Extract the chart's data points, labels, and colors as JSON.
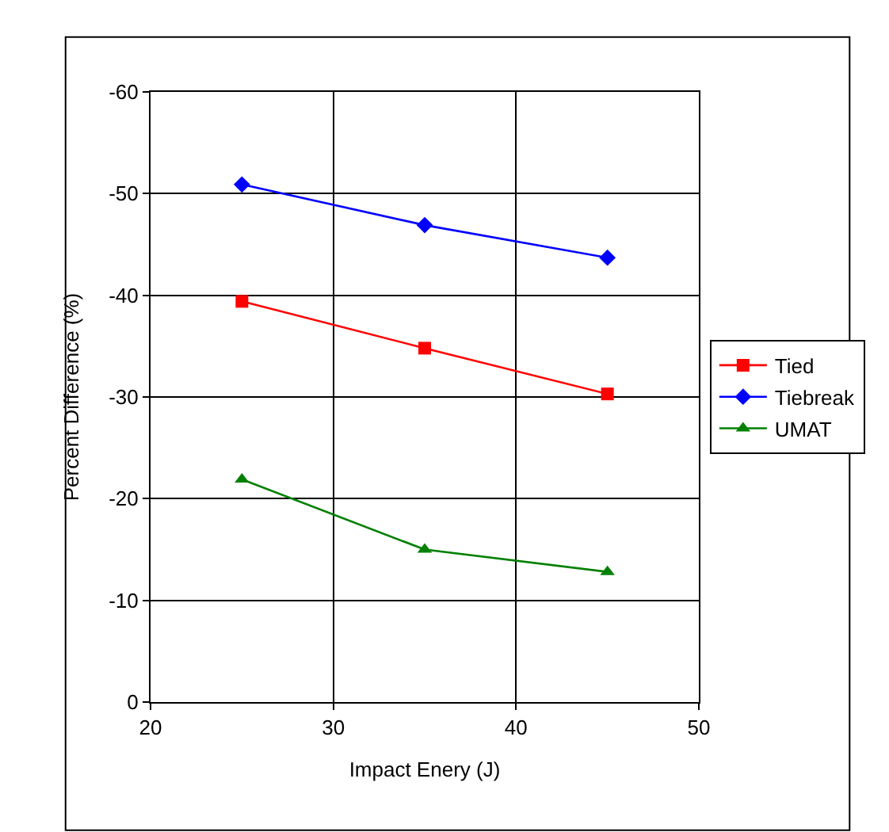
{
  "chart_data": {
    "type": "line",
    "xlabel": "Impact Enery (J)",
    "ylabel": "Percent Difference (%)",
    "x": [
      25,
      35,
      45
    ],
    "series": [
      {
        "name": "Tied",
        "color": "#ff0000",
        "marker": "square",
        "values": [
          -39.4,
          -34.8,
          -30.3
        ]
      },
      {
        "name": "Tiebreak",
        "color": "#0000ff",
        "marker": "diamond",
        "values": [
          -50.9,
          -46.9,
          -43.7
        ]
      },
      {
        "name": "UMAT",
        "color": "#008000",
        "marker": "triangle",
        "values": [
          -21.9,
          -15.0,
          -12.8
        ]
      }
    ],
    "xlim": [
      20,
      50
    ],
    "xticks": [
      20,
      30,
      40,
      50
    ],
    "ylim": [
      0,
      -60
    ],
    "yticks": [
      0,
      -10,
      -20,
      -30,
      -40,
      -50,
      -60
    ],
    "grid": true,
    "legend": "right",
    "line_style": "solid"
  }
}
